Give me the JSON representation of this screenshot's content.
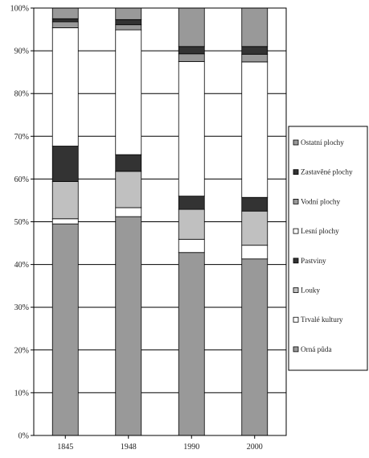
{
  "chart_data": {
    "type": "stacked-bar-100",
    "categories": [
      "1845",
      "1948",
      "1990",
      "2000"
    ],
    "y_ticks": [
      "0%",
      "10%",
      "20%",
      "30%",
      "40%",
      "50%",
      "60%",
      "70%",
      "80%",
      "90%",
      "100%"
    ],
    "ylim": [
      0,
      100
    ],
    "grid": true,
    "legend_position": "right",
    "series": [
      {
        "name": "Orná půda",
        "color": "#999999",
        "values": [
          49.5,
          51.2,
          42.8,
          41.3
        ]
      },
      {
        "name": "Trvalé kultury",
        "color": "#ffffff",
        "values": [
          1.2,
          2.1,
          3.1,
          3.2
        ]
      },
      {
        "name": "Louky",
        "color": "#c0c0c0",
        "values": [
          8.7,
          8.5,
          7.0,
          8.0
        ]
      },
      {
        "name": "Pastviny",
        "color": "#333333",
        "values": [
          8.3,
          3.9,
          3.1,
          3.2
        ]
      },
      {
        "name": "Lesní plochy",
        "color": "#ffffff",
        "values": [
          27.7,
          29.2,
          31.5,
          31.7
        ]
      },
      {
        "name": "Vodní plochy",
        "color": "#999999",
        "values": [
          1.4,
          1.2,
          1.8,
          1.8
        ]
      },
      {
        "name": "Zastavěné plochy",
        "color": "#333333",
        "values": [
          0.7,
          1.2,
          1.7,
          1.8
        ]
      },
      {
        "name": "Ostatní plochy",
        "color": "#999999",
        "values": [
          2.5,
          2.7,
          9.0,
          9.0
        ]
      }
    ]
  }
}
